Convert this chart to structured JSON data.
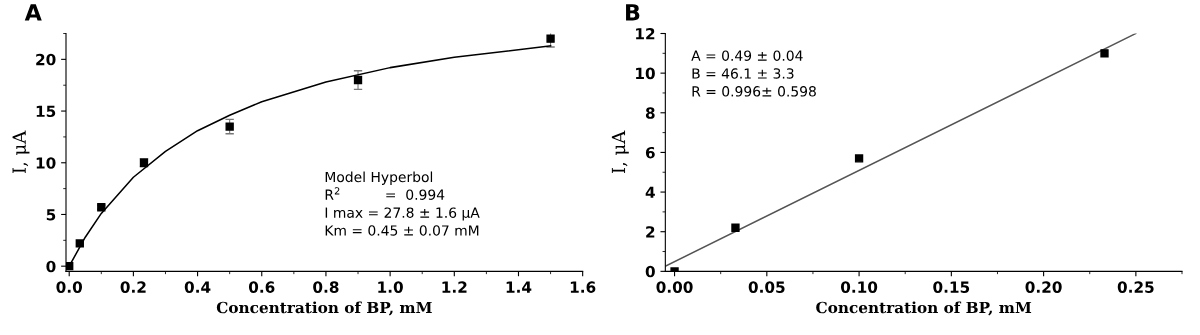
{
  "chart_data": [
    {
      "type": "scatter",
      "title": "A",
      "xlabel": "Concentration of BP, mM",
      "ylabel": "I, μA",
      "grid": false,
      "legend": false,
      "xlim": [
        -0.01,
        1.6
      ],
      "xticks": [
        {
          "value": 0,
          "label": "0.0"
        },
        0.2,
        0.4,
        0.6,
        0.8,
        {
          "value": 1,
          "label": "1.0"
        },
        1.2,
        1.4,
        1.6
      ],
      "ylim": [
        -0.5,
        22.5
      ],
      "yticks": [
        0,
        5,
        10,
        15,
        20
      ],
      "series": [
        {
          "marker": "square",
          "color": "#000000",
          "x": [
            0,
            0.033,
            0.1,
            0.233,
            0.5,
            0.9,
            1.5
          ],
          "values": [
            0,
            2.2,
            5.7,
            10,
            13.5,
            18,
            22
          ],
          "errors": [
            null,
            null,
            0.2,
            0.4,
            0.7,
            0.9,
            0.8
          ]
        },
        {
          "type": "line",
          "color": "#000000",
          "x": [
            0,
            0.05,
            0.1,
            0.2,
            0.3,
            0.4,
            0.5,
            0.6,
            0.8,
            1.0,
            1.2,
            1.5
          ],
          "values": [
            0,
            2.8,
            5.1,
            8.6,
            11.1,
            13.1,
            14.6,
            15.9,
            17.8,
            19.2,
            20.2,
            21.3
          ]
        }
      ],
      "annotations": [
        "Model Hyperbol",
        "R$^{2}$          =  0.994",
        "I max = 27.8 ± 1.6 μA",
        "Km = 0.45 ± 0.07 mM"
      ]
    },
    {
      "type": "scatter",
      "title": "B",
      "xlabel": "Concentration of BP, mM",
      "ylabel": "I, μA",
      "grid": false,
      "legend": false,
      "xlim": [
        -0.005,
        0.275
      ],
      "xticks": [
        {
          "value": 0,
          "label": "0.00"
        },
        0.05,
        {
          "value": 0.1,
          "label": "0.10"
        },
        0.15,
        {
          "value": 0.2,
          "label": "0.20"
        },
        0.25
      ],
      "ylim": [
        0,
        12
      ],
      "yticks": [
        0,
        2,
        4,
        6,
        8,
        10,
        12
      ],
      "series": [
        {
          "marker": "square",
          "color": "#000000",
          "x": [
            0,
            0.033,
            0.1,
            0.233
          ],
          "values": [
            0,
            2.2,
            5.7,
            11
          ]
        },
        {
          "type": "line",
          "color": "#555555",
          "x": [
            -0.005,
            0.25
          ],
          "values": [
            0.26,
            12
          ]
        }
      ],
      "annotations": [
        "A = 0.49 ± 0.04",
        "B = 46.1 ± 3.3",
        "R = 0.996± 0.598"
      ]
    }
  ]
}
